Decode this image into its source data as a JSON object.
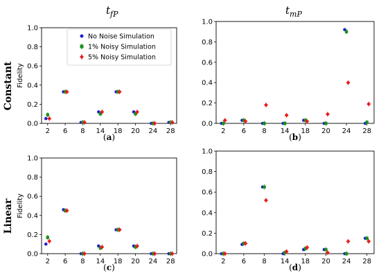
{
  "column_titles": {
    "left_main": "t",
    "left_sub": "fP",
    "right_main": "t",
    "right_sub": "mP"
  },
  "row_labels": {
    "top": "Constant",
    "bottom": "Linear"
  },
  "colors": {
    "no_noise": "#1f1fd0",
    "noisy_1": "#1a8f1a",
    "noisy_5": "#e81c1c",
    "axis": "#000000"
  },
  "legend": {
    "entries": [
      {
        "label": "No Noise Simulation",
        "series": "no_noise"
      },
      {
        "label": "1% Noisy Simulation",
        "series": "noisy_1"
      },
      {
        "label": "5% Noisy Simulation",
        "series": "noisy_5"
      }
    ]
  },
  "chart_data": [
    {
      "id": "a",
      "type": "scatter",
      "caption": "a",
      "ylabel": "Fidelity",
      "ylim": [
        0,
        1.0
      ],
      "yticks": [
        "0.0",
        "0.2",
        "0.4",
        "0.6",
        "0.8",
        "1.0"
      ],
      "categories": [
        "2",
        "6",
        "8",
        "14",
        "18",
        "20",
        "24",
        "28"
      ],
      "series": [
        {
          "name": "No Noise Simulation",
          "key": "no_noise",
          "values": [
            0.05,
            0.33,
            0.01,
            0.12,
            0.33,
            0.12,
            0.0,
            0.01
          ]
        },
        {
          "name": "1% Noisy Simulation",
          "key": "noisy_1",
          "values": [
            0.09,
            0.33,
            0.01,
            0.1,
            0.33,
            0.1,
            0.0,
            0.01
          ]
        },
        {
          "name": "5% Noisy Simulation",
          "key": "noisy_5",
          "values": [
            0.05,
            0.33,
            0.01,
            0.12,
            0.33,
            0.12,
            0.0,
            0.01
          ]
        }
      ]
    },
    {
      "id": "b",
      "type": "scatter",
      "caption": "b",
      "ylabel": "",
      "ylim": [
        0,
        1.0
      ],
      "yticks": [
        "0.0",
        "0.2",
        "0.4",
        "0.6",
        "0.8",
        "1.0"
      ],
      "categories": [
        "2",
        "6",
        "8",
        "14",
        "18",
        "20",
        "24",
        "28"
      ],
      "series": [
        {
          "name": "No Noise Simulation",
          "key": "no_noise",
          "values": [
            0.0,
            0.03,
            0.0,
            0.0,
            0.03,
            0.0,
            0.92,
            0.0
          ]
        },
        {
          "name": "1% Noisy Simulation",
          "key": "noisy_1",
          "values": [
            0.0,
            0.03,
            0.0,
            0.0,
            0.03,
            0.0,
            0.9,
            0.01
          ]
        },
        {
          "name": "5% Noisy Simulation",
          "key": "noisy_5",
          "values": [
            0.03,
            0.02,
            0.18,
            0.08,
            0.02,
            0.09,
            0.4,
            0.19
          ]
        }
      ]
    },
    {
      "id": "c",
      "type": "scatter",
      "caption": "c",
      "ylabel": "Fidelity",
      "ylim": [
        0,
        1.0
      ],
      "yticks": [
        "0.0",
        "0.2",
        "0.4",
        "0.6",
        "0.8",
        "1.0"
      ],
      "categories": [
        "2",
        "6",
        "8",
        "14",
        "18",
        "20",
        "24",
        "28"
      ],
      "series": [
        {
          "name": "No Noise Simulation",
          "key": "no_noise",
          "values": [
            0.1,
            0.46,
            0.0,
            0.08,
            0.25,
            0.08,
            0.0,
            0.0
          ]
        },
        {
          "name": "1% Noisy Simulation",
          "key": "noisy_1",
          "values": [
            0.17,
            0.45,
            0.0,
            0.06,
            0.25,
            0.07,
            0.0,
            0.0
          ]
        },
        {
          "name": "5% Noisy Simulation",
          "key": "noisy_5",
          "values": [
            0.13,
            0.45,
            0.0,
            0.07,
            0.25,
            0.08,
            0.0,
            0.0
          ]
        }
      ]
    },
    {
      "id": "d",
      "type": "scatter",
      "caption": "d",
      "ylabel": "",
      "ylim": [
        0,
        1.0
      ],
      "yticks": [
        "0.0",
        "0.2",
        "0.4",
        "0.6",
        "0.8",
        "1.0"
      ],
      "categories": [
        "2",
        "6",
        "8",
        "14",
        "18",
        "20",
        "24",
        "28"
      ],
      "series": [
        {
          "name": "No Noise Simulation",
          "key": "no_noise",
          "values": [
            0.0,
            0.09,
            0.65,
            0.0,
            0.04,
            0.04,
            0.0,
            0.15
          ]
        },
        {
          "name": "1% Noisy Simulation",
          "key": "noisy_1",
          "values": [
            0.0,
            0.1,
            0.65,
            0.01,
            0.05,
            0.04,
            0.0,
            0.15
          ]
        },
        {
          "name": "5% Noisy Simulation",
          "key": "noisy_5",
          "values": [
            0.0,
            0.1,
            0.52,
            0.02,
            0.06,
            0.01,
            0.12,
            0.12
          ]
        }
      ]
    }
  ]
}
